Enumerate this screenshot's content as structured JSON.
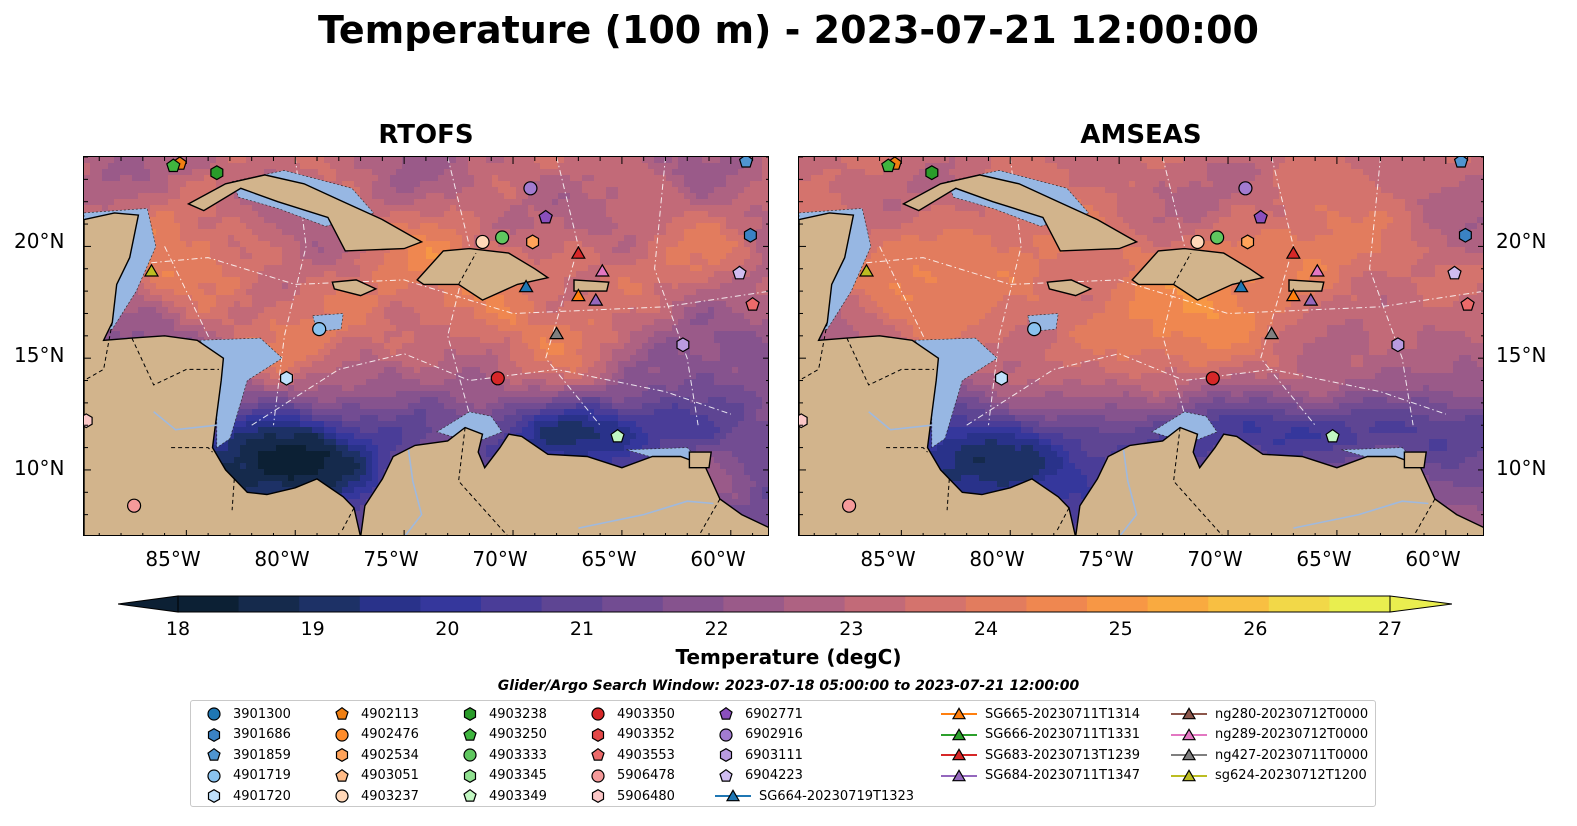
{
  "title": "Temperature (100 m) - 2023-07-21 12:00:00",
  "panels": [
    {
      "name": "RTOFS",
      "variant": "rtofs"
    },
    {
      "name": "AMSEAS",
      "variant": "amseas"
    }
  ],
  "lat_labels": [
    "20°N",
    "15°N",
    "10°N"
  ],
  "lon_labels": [
    "85°W",
    "80°W",
    "75°W",
    "70°W",
    "65°W",
    "60°W"
  ],
  "map_extent": {
    "lon": [
      -89.7,
      -58.2
    ],
    "lat": [
      7,
      24
    ]
  },
  "colorbar": {
    "min": 18,
    "max": 27,
    "step": 0.5,
    "ticks": [
      "18",
      "19",
      "20",
      "21",
      "22",
      "23",
      "24",
      "25",
      "26",
      "27"
    ],
    "label": "Temperature (degC)",
    "colors": [
      "#0c2034",
      "#152a4c",
      "#1d3166",
      "#29328a",
      "#35379c",
      "#4a3d98",
      "#5e4593",
      "#724c92",
      "#86538e",
      "#9a5a89",
      "#ae6282",
      "#c26a78",
      "#d4736d",
      "#e27c5e",
      "#ef8750",
      "#f79745",
      "#f9aa40",
      "#f8bf42",
      "#f2d848",
      "#e9ee4f"
    ]
  },
  "search_window": "Glider/Argo Search Window: 2023-07-18 05:00:00 to 2023-07-21 12:00:00",
  "colors": {
    "land": "#d2b48c",
    "shelf": "#97b7e3",
    "sea": "#e6a24a",
    "edge": "#000000"
  },
  "legend": [
    {
      "label": "3901300",
      "shape": "circle",
      "color": "#1f77b4",
      "lon": null,
      "lat": null
    },
    {
      "label": "3901686",
      "shape": "hexagon",
      "color": "#3a82c4",
      "lon": -59.1,
      "lat": 20.5
    },
    {
      "label": "3901859",
      "shape": "pentagon",
      "color": "#4f95d1",
      "lon": -59.3,
      "lat": 23.8
    },
    {
      "label": "4901719",
      "shape": "circle",
      "color": "#8ac2ef",
      "lon": -78.9,
      "lat": 16.3
    },
    {
      "label": "4901720",
      "shape": "hexagon",
      "color": "#bfe0fb",
      "lon": -80.4,
      "lat": 14.1
    },
    {
      "label": "4902113",
      "shape": "pentagon",
      "color": "#f07f12",
      "lon": -85.3,
      "lat": 23.7
    },
    {
      "label": "4902476",
      "shape": "circle",
      "color": "#ff8c2a",
      "lon": null,
      "lat": null
    },
    {
      "label": "4902534",
      "shape": "hexagon",
      "color": "#ffa35a",
      "lon": -69.1,
      "lat": 20.2
    },
    {
      "label": "4903051",
      "shape": "pentagon",
      "color": "#ffbb87",
      "lon": null,
      "lat": null
    },
    {
      "label": "4903237",
      "shape": "circle",
      "color": "#ffd7b8",
      "lon": -71.4,
      "lat": 20.2
    },
    {
      "label": "4903238",
      "shape": "hexagon",
      "color": "#2a9c2a",
      "lon": -83.6,
      "lat": 23.3
    },
    {
      "label": "4903250",
      "shape": "pentagon",
      "color": "#3fb53f",
      "lon": -85.6,
      "lat": 23.6
    },
    {
      "label": "4903333",
      "shape": "circle",
      "color": "#5fc75f",
      "lon": -70.5,
      "lat": 20.4
    },
    {
      "label": "4903345",
      "shape": "hexagon",
      "color": "#90e090",
      "lon": null,
      "lat": null
    },
    {
      "label": "4903349",
      "shape": "pentagon",
      "color": "#c2f7c2",
      "lon": -65.2,
      "lat": 11.5
    },
    {
      "label": "4903350",
      "shape": "circle",
      "color": "#d62728",
      "lon": -70.7,
      "lat": 14.1
    },
    {
      "label": "4903352",
      "shape": "hexagon",
      "color": "#e34848",
      "lon": null,
      "lat": null
    },
    {
      "label": "4903553",
      "shape": "pentagon",
      "color": "#ec6a6a",
      "lon": -59.0,
      "lat": 17.4
    },
    {
      "label": "5906478",
      "shape": "circle",
      "color": "#f59a9a",
      "lon": -87.4,
      "lat": 8.4
    },
    {
      "label": "5906480",
      "shape": "hexagon",
      "color": "#fbc7c7",
      "lon": -89.6,
      "lat": 12.2
    },
    {
      "label": "6902771",
      "shape": "pentagon",
      "color": "#8a4fbd",
      "lon": -68.5,
      "lat": 21.3
    },
    {
      "label": "6902916",
      "shape": "circle",
      "color": "#a27bd0",
      "lon": -69.2,
      "lat": 22.6
    },
    {
      "label": "6903111",
      "shape": "hexagon",
      "color": "#b99be0",
      "lon": -62.2,
      "lat": 15.6
    },
    {
      "label": "6904223",
      "shape": "pentagon",
      "color": "#d0bdf0",
      "lon": -59.6,
      "lat": 18.8
    },
    {
      "label": "SG664-20230719T1323",
      "shape": "triangle",
      "color": "#1f77b4",
      "line": true,
      "lon": -69.4,
      "lat": 18.2
    },
    {
      "label": "SG665-20230711T1314",
      "shape": "triangle",
      "color": "#ff7f0e",
      "line": true,
      "lon": -67.0,
      "lat": 17.8
    },
    {
      "label": "SG666-20230711T1331",
      "shape": "triangle",
      "color": "#2ca02c",
      "line": true,
      "lon": null,
      "lat": null
    },
    {
      "label": "SG683-20230713T1239",
      "shape": "triangle",
      "color": "#d62728",
      "line": true,
      "lon": -67.0,
      "lat": 19.7
    },
    {
      "label": "SG684-20230711T1347",
      "shape": "triangle",
      "color": "#9467bd",
      "line": true,
      "lon": -66.2,
      "lat": 17.6
    },
    {
      "label": "ng280-20230712T0000",
      "shape": "triangle",
      "color": "#8c564b",
      "line": true,
      "lon": null,
      "lat": null
    },
    {
      "label": "ng289-20230712T0000",
      "shape": "triangle",
      "color": "#e377c2",
      "line": true,
      "lon": -65.9,
      "lat": 18.9
    },
    {
      "label": "ng427-20230711T0000",
      "shape": "triangle",
      "color": "#7f7f7f",
      "line": true,
      "lon": -68.0,
      "lat": 16.1
    },
    {
      "label": "sg624-20230712T1200",
      "shape": "triangle",
      "color": "#bcbd22",
      "line": true,
      "lon": -86.6,
      "lat": 18.9
    }
  ]
}
